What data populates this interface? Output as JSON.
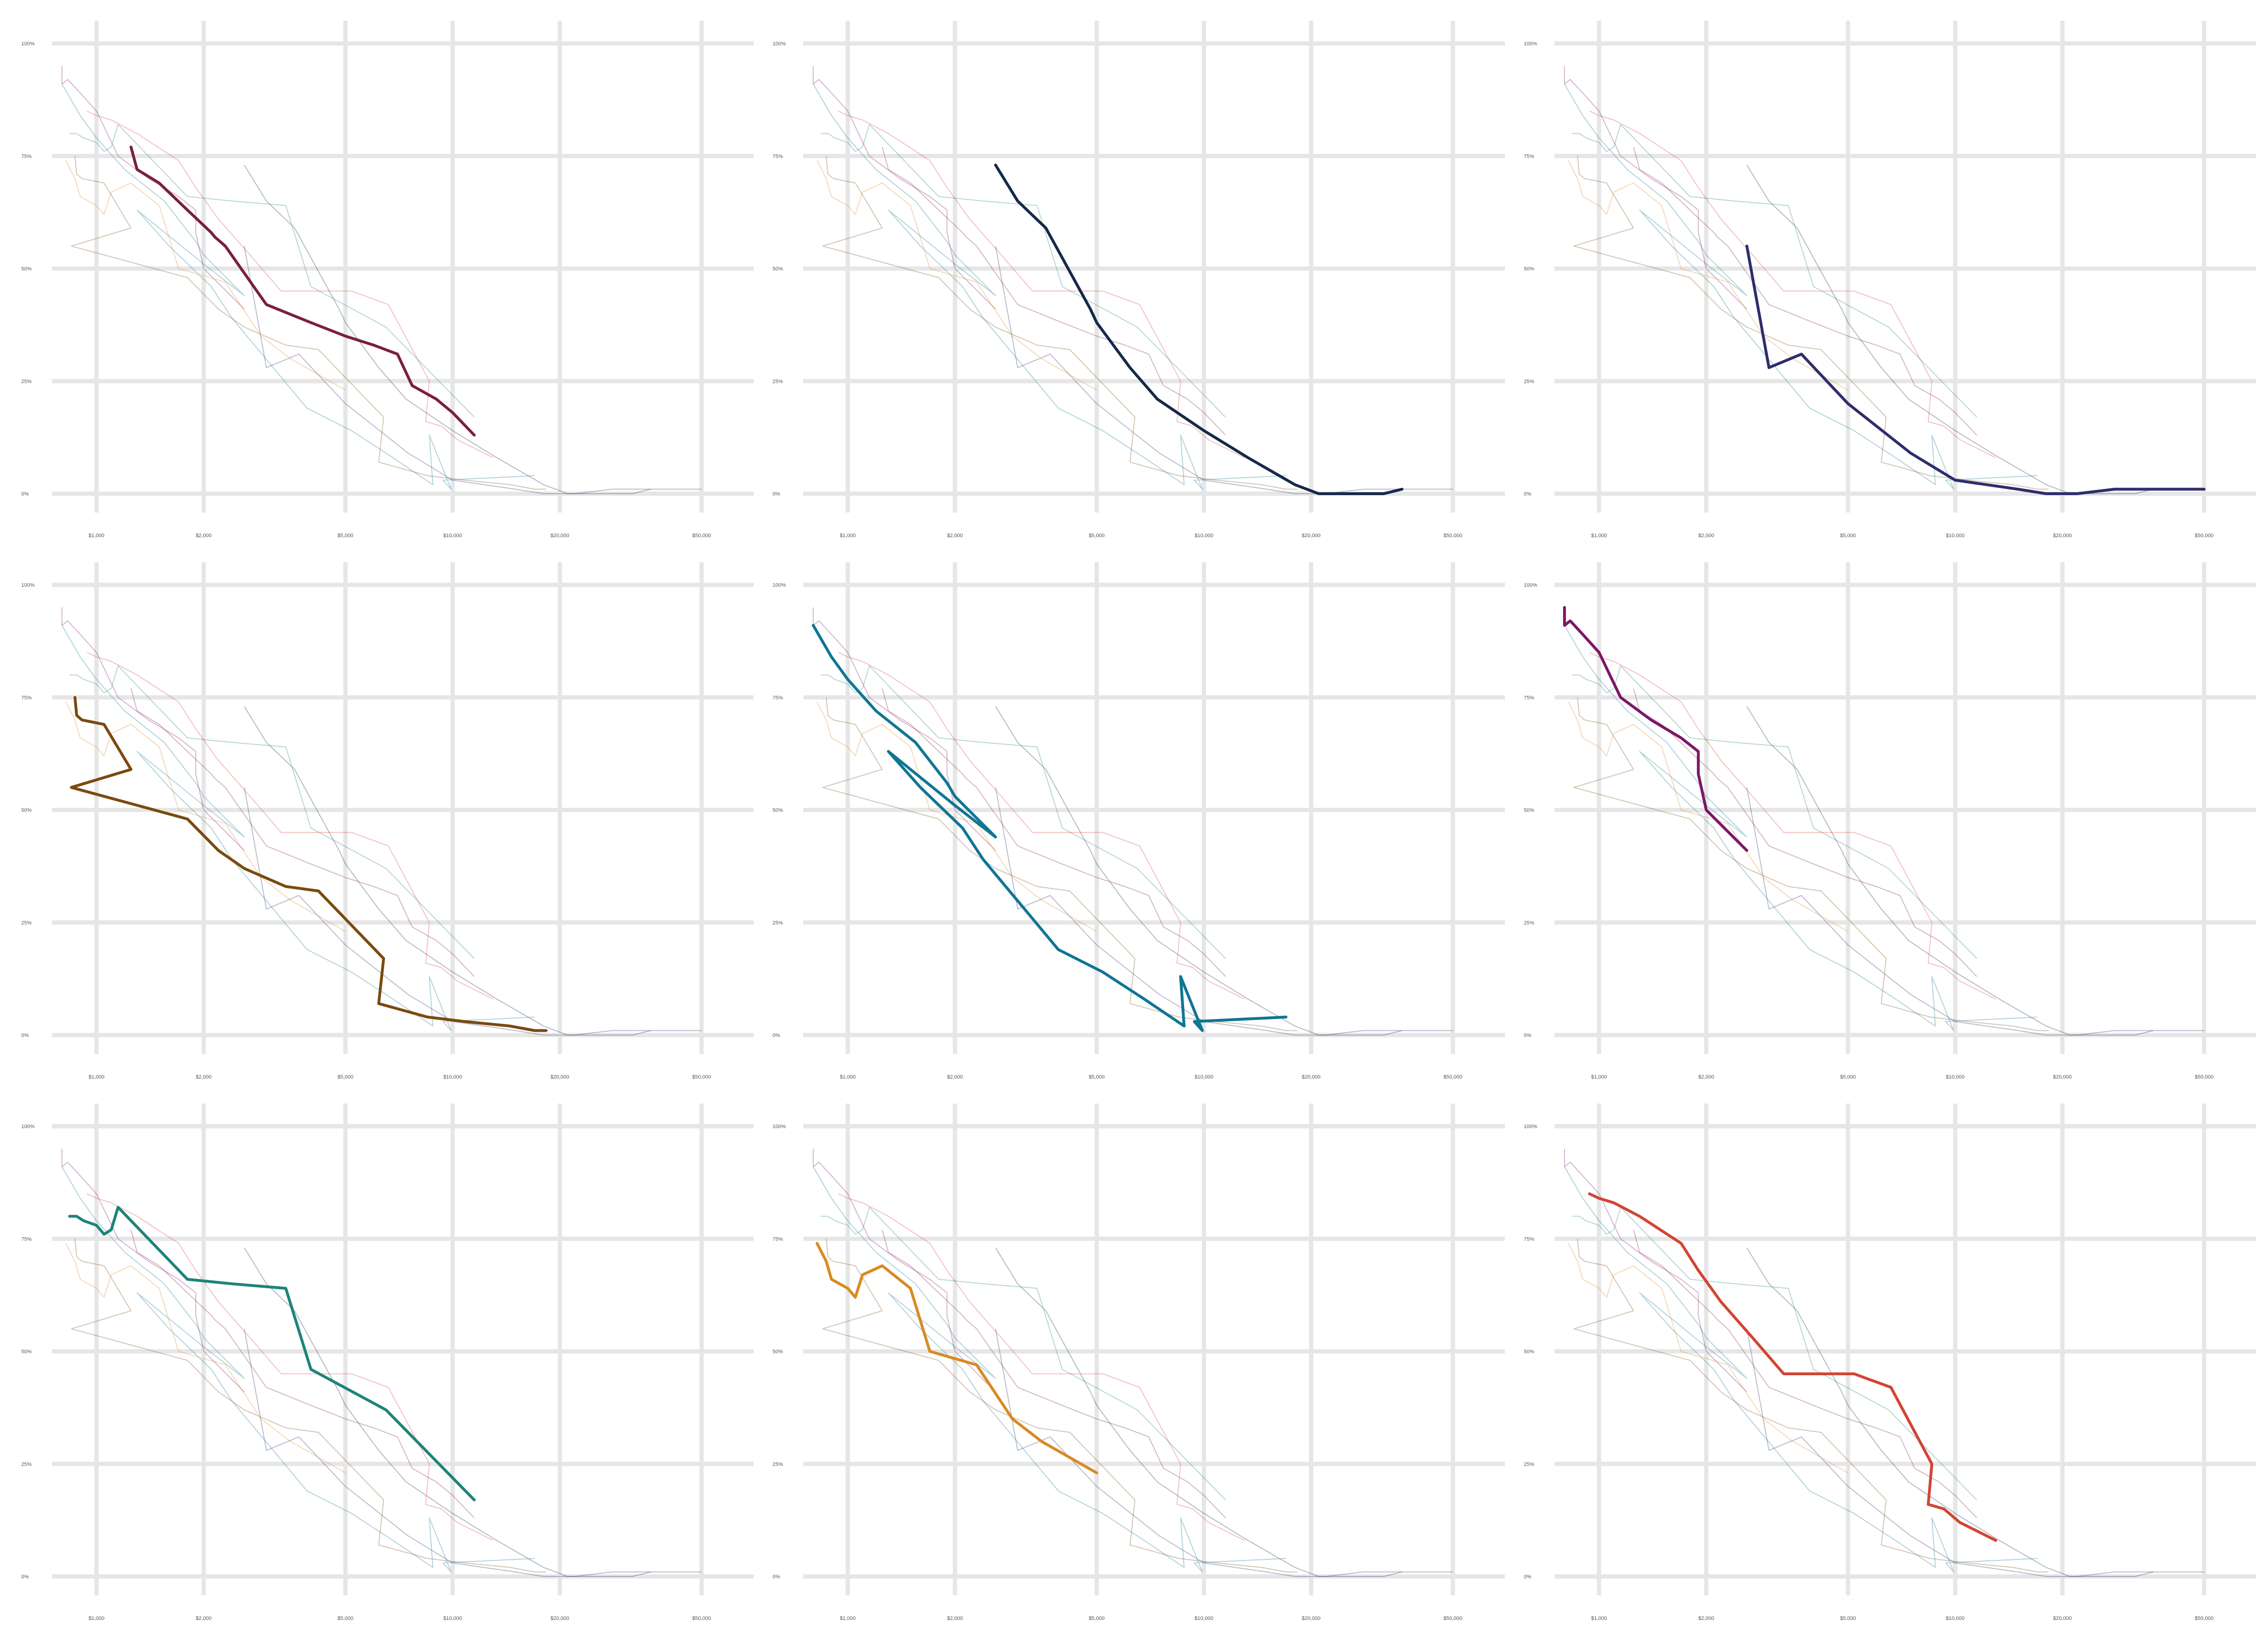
{
  "chart_data": {
    "type": "line",
    "layout": "small-multiples-3x3",
    "x_scale": "log",
    "xlim": [
      750,
      70000
    ],
    "ylim": [
      0,
      100
    ],
    "x_ticks": [
      1000,
      2000,
      5000,
      10000,
      20000,
      50000
    ],
    "x_tick_labels": [
      "$1,000",
      "$2,000",
      "$5,000",
      "$10,000",
      "$20,000",
      "$50,000"
    ],
    "y_ticks": [
      0,
      25,
      50,
      75,
      100
    ],
    "y_tick_labels": [
      "0%",
      "25%",
      "50%",
      "75%",
      "100%"
    ],
    "grid": true,
    "legend": "none",
    "title": "",
    "xlabel": "",
    "ylabel": "",
    "series": [
      {
        "color": "#7a1f3d",
        "x": [
          1250,
          1300,
          1500,
          1800,
          2100,
          2150,
          2300,
          3000,
          4000,
          5000,
          6000,
          7000,
          7700,
          9000,
          10000,
          11500
        ],
        "y": [
          77,
          72,
          69,
          63,
          58,
          57,
          55,
          42,
          38,
          35,
          33,
          31,
          24,
          21,
          18,
          13
        ]
      },
      {
        "color": "#16294a",
        "x": [
          2600,
          3000,
          3600,
          4800,
          5000,
          6200,
          7400,
          10000,
          13300,
          18000,
          21000,
          32000,
          36000
        ],
        "y": [
          73,
          65,
          59,
          41,
          38,
          28,
          21,
          14,
          8,
          2,
          0,
          0,
          1
        ]
      },
      {
        "color": "#2e2d6e",
        "x": [
          2600,
          3000,
          3700,
          5000,
          7500,
          10000,
          15000,
          18000,
          22000,
          28000,
          50000
        ],
        "y": [
          55,
          28,
          31,
          20,
          9,
          3,
          1,
          0,
          0,
          1,
          1
        ]
      },
      {
        "color": "#7a4a0e",
        "x": [
          870,
          880,
          910,
          1050,
          1250,
          850,
          1800,
          2200,
          2600,
          3400,
          4200,
          6400,
          6200,
          8500,
          10800,
          14500,
          17000,
          18300
        ],
        "y": [
          75,
          71,
          70,
          69,
          59,
          55,
          48,
          41,
          37,
          33,
          32,
          17,
          7,
          4,
          3,
          2,
          1,
          1
        ]
      },
      {
        "color": "#0f7693",
        "x": [
          800,
          900,
          1000,
          1200,
          1550,
          1900,
          2000,
          2600,
          2000,
          1300,
          1600,
          2100,
          2400,
          3900,
          5200,
          6800,
          8800,
          8600,
          9900,
          9400,
          17000
        ],
        "y": [
          91,
          84,
          79,
          72,
          65,
          56,
          53,
          44,
          51,
          63,
          55,
          46,
          39,
          19,
          14,
          8,
          2,
          13,
          1,
          3,
          4
        ]
      },
      {
        "color": "#7c1767",
        "x": [
          800,
          800,
          830,
          900,
          1000,
          1150,
          1400,
          1700,
          1900,
          1900,
          2000,
          2600
        ],
        "y": [
          95,
          91,
          92,
          89,
          85,
          75,
          70,
          66,
          63,
          58,
          50,
          41
        ]
      },
      {
        "color": "#1e837b",
        "x": [
          840,
          880,
          920,
          1000,
          1050,
          1100,
          1150,
          1800,
          2400,
          3400,
          4000,
          6500,
          11500
        ],
        "y": [
          80,
          80,
          79,
          78,
          76,
          77,
          82,
          66,
          65,
          64,
          46,
          37,
          17
        ]
      },
      {
        "color": "#d98a23",
        "x": [
          820,
          870,
          900,
          1000,
          1050,
          1100,
          1250,
          1500,
          1700,
          2300,
          2900,
          3500,
          5000
        ],
        "y": [
          74,
          70,
          66,
          64,
          62,
          67,
          69,
          64,
          50,
          47,
          35,
          30,
          23
        ]
      },
      {
        "color": "#d34434",
        "x": [
          940,
          1000,
          1100,
          1300,
          1700,
          1900,
          2200,
          2700,
          3300,
          4700,
          5200,
          6600,
          8600,
          8400,
          9300,
          10300,
          13000
        ],
        "y": [
          85,
          84,
          83,
          80,
          74,
          68,
          61,
          53,
          45,
          45,
          45,
          42,
          25,
          16,
          15,
          12,
          8
        ]
      }
    ]
  }
}
